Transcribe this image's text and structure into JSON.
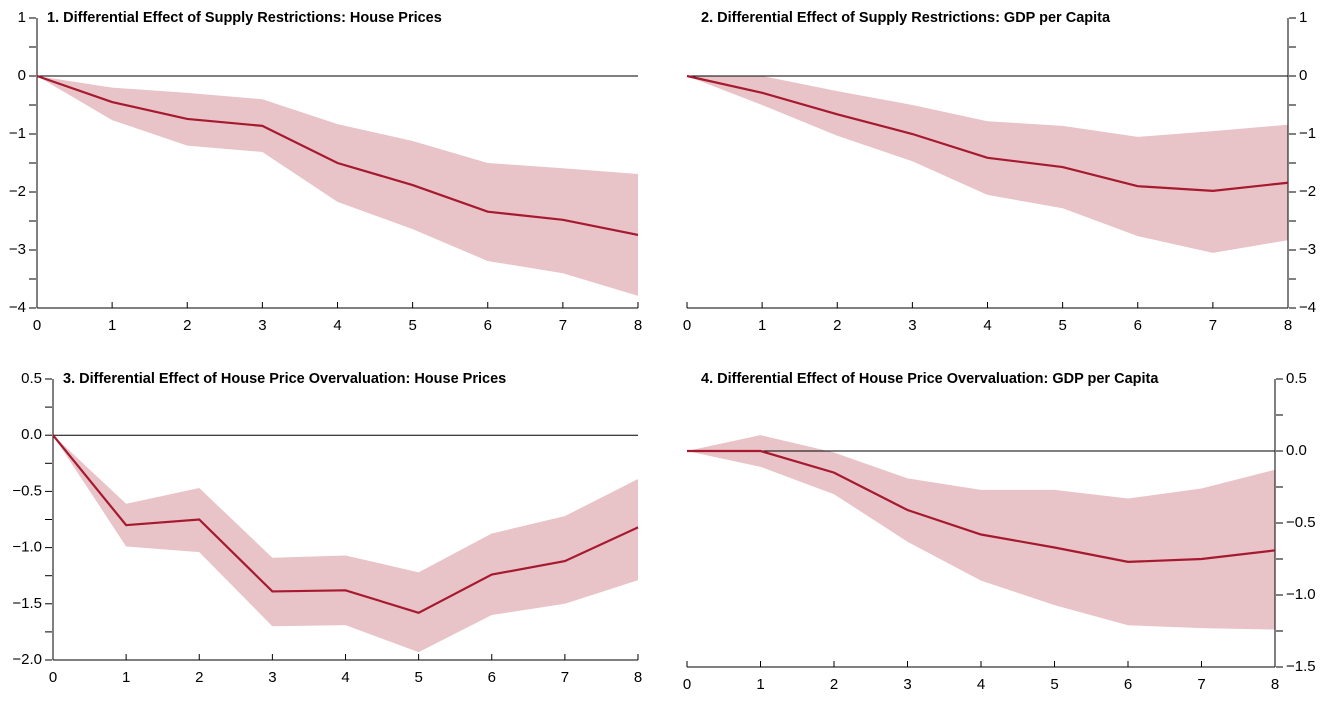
{
  "chart_data": [
    {
      "type": "line",
      "title": "1. Differential Effect of Supply Restrictions: House Prices",
      "axis_side": "left",
      "x": [
        0,
        1,
        2,
        3,
        4,
        5,
        6,
        7,
        8
      ],
      "xlim": [
        0,
        8
      ],
      "xticks": [
        0,
        1,
        2,
        3,
        4,
        5,
        6,
        7,
        8
      ],
      "ylim": [
        -4,
        1
      ],
      "yticks": [
        {
          "value": -4,
          "label": "−4"
        },
        {
          "value": -3,
          "label": "−3"
        },
        {
          "value": -2,
          "label": "−2"
        },
        {
          "value": -1,
          "label": "−1"
        },
        0,
        1
      ],
      "yticks_minor": [
        -3.5,
        -2.5,
        -1.5,
        -0.5,
        0.5
      ],
      "zero_line": true,
      "series": [
        {
          "color": "#a6192e",
          "values": [
            0,
            -0.45,
            -0.74,
            -0.86,
            -1.5,
            -1.88,
            -2.34,
            -2.48,
            -2.74
          ]
        }
      ],
      "band": {
        "color": "#e8c3c8",
        "upper": [
          0,
          -0.2,
          -0.29,
          -0.4,
          -0.83,
          -1.12,
          -1.5,
          -1.59,
          -1.69
        ],
        "lower": [
          0,
          -0.76,
          -1.2,
          -1.31,
          -2.17,
          -2.64,
          -3.19,
          -3.4,
          -3.79
        ]
      }
    },
    {
      "type": "line",
      "title": "2. Differential Effect of Supply Restrictions: GDP per Capita",
      "axis_side": "right",
      "x": [
        0,
        1,
        2,
        3,
        4,
        5,
        6,
        7,
        8
      ],
      "xlim": [
        0,
        8
      ],
      "xticks": [
        0,
        1,
        2,
        3,
        4,
        5,
        6,
        7,
        8
      ],
      "ylim": [
        -4,
        1
      ],
      "yticks": [
        {
          "value": -4,
          "label": "−4"
        },
        {
          "value": -3,
          "label": "−3"
        },
        {
          "value": -2,
          "label": "−2"
        },
        {
          "value": -1,
          "label": "−1"
        },
        0,
        1
      ],
      "yticks_minor": [
        -3.5,
        -2.5,
        -1.5,
        -0.5,
        0.5
      ],
      "zero_line": true,
      "series": [
        {
          "color": "#a6192e",
          "values": [
            0,
            -0.29,
            -0.66,
            -1.0,
            -1.41,
            -1.57,
            -1.9,
            -1.98,
            -1.84
          ]
        }
      ],
      "band": {
        "color": "#e8c3c8",
        "upper": [
          0,
          0.0,
          -0.26,
          -0.5,
          -0.78,
          -0.86,
          -1.05,
          -0.95,
          -0.84
        ],
        "lower": [
          0,
          -0.5,
          -1.03,
          -1.47,
          -2.05,
          -2.28,
          -2.76,
          -3.05,
          -2.83
        ]
      }
    },
    {
      "type": "line",
      "title": "3. Differential Effect of House Price Overvaluation: House Prices",
      "axis_side": "left",
      "x": [
        0,
        1,
        2,
        3,
        4,
        5,
        6,
        7,
        8
      ],
      "xlim": [
        0,
        8
      ],
      "xticks": [
        0,
        1,
        2,
        3,
        4,
        5,
        6,
        7,
        8
      ],
      "ylim": [
        -2,
        0.5
      ],
      "yticks": [
        {
          "value": -2,
          "label": "−2.0"
        },
        {
          "value": -1.5,
          "label": "−1.5"
        },
        {
          "value": -1,
          "label": "−1.0"
        },
        {
          "value": -0.5,
          "label": "−0.5"
        },
        {
          "value": 0,
          "label": "0.0"
        },
        0.5
      ],
      "yticks_minor": [
        -1.75,
        -1.25,
        -0.75,
        -0.25,
        0.25
      ],
      "zero_line": true,
      "series": [
        {
          "color": "#a6192e",
          "values": [
            0,
            -0.8,
            -0.75,
            -1.39,
            -1.38,
            -1.58,
            -1.24,
            -1.12,
            -0.82
          ]
        }
      ],
      "band": {
        "color": "#e8c3c8",
        "upper": [
          0,
          -0.61,
          -0.47,
          -1.09,
          -1.07,
          -1.22,
          -0.875,
          -0.72,
          -0.39
        ],
        "lower": [
          0,
          -0.99,
          -1.04,
          -1.7,
          -1.69,
          -1.93,
          -1.6,
          -1.5,
          -1.29
        ]
      }
    },
    {
      "type": "line",
      "title": "4. Differential Effect of House Price Overvaluation: GDP per Capita",
      "axis_side": "right",
      "x": [
        0,
        1,
        2,
        3,
        4,
        5,
        6,
        7,
        8
      ],
      "xlim": [
        0,
        8
      ],
      "xticks": [
        0,
        1,
        2,
        3,
        4,
        5,
        6,
        7,
        8
      ],
      "ylim": [
        -1.5,
        0.5
      ],
      "yticks": [
        {
          "value": -1.5,
          "label": "−1.5"
        },
        {
          "value": -1,
          "label": "−1.0"
        },
        {
          "value": -0.5,
          "label": "−0.5"
        },
        {
          "value": 0,
          "label": "0.0"
        },
        0.5
      ],
      "yticks_minor": [
        -1.25,
        -0.75,
        -0.25,
        0.25
      ],
      "zero_line": true,
      "series": [
        {
          "color": "#a6192e",
          "values": [
            0,
            0,
            -0.15,
            -0.41,
            -0.58,
            -0.67,
            -0.77,
            -0.75,
            -0.69
          ]
        }
      ],
      "band": {
        "color": "#e8c3c8",
        "upper": [
          0,
          0.11,
          -0.01,
          -0.19,
          -0.27,
          -0.27,
          -0.33,
          -0.26,
          -0.13
        ],
        "lower": [
          0,
          -0.11,
          -0.3,
          -0.63,
          -0.9,
          -1.07,
          -1.21,
          -1.23,
          -1.24
        ]
      }
    }
  ]
}
